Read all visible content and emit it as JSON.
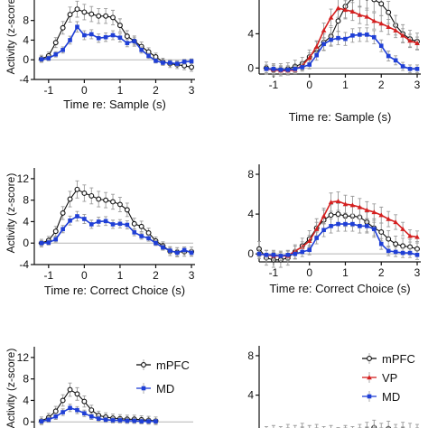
{
  "colors": {
    "mpfc": "#111111",
    "md": "#1f3fd6",
    "vp": "#d42020",
    "err": "#9a9a9a",
    "zero": "#b5b5b5"
  },
  "chart_data": [
    {
      "id": "left-top",
      "type": "line",
      "xlabel": "Time re: Sample (s)",
      "ylabel": "Activity (z-score)",
      "xlim": [
        -1.4,
        3.1
      ],
      "ylim": [
        -4,
        14
      ],
      "xticks": [
        -1,
        0,
        1,
        2,
        3
      ],
      "yticks": [
        -4,
        0,
        4,
        8
      ],
      "x": [
        -1.2,
        -1.0,
        -0.8,
        -0.6,
        -0.4,
        -0.2,
        0.0,
        0.2,
        0.4,
        0.6,
        0.8,
        1.0,
        1.2,
        1.4,
        1.6,
        1.8,
        2.0,
        2.2,
        2.4,
        2.6,
        2.8,
        3.0
      ],
      "series": [
        {
          "name": "mPFC",
          "values": [
            0.2,
            0.8,
            3.5,
            6.5,
            9.2,
            10.3,
            9.7,
            9.3,
            8.9,
            8.9,
            8.6,
            7.0,
            4.8,
            3.8,
            2.7,
            1.6,
            0.6,
            -0.4,
            -0.8,
            -1.0,
            -1.2,
            -1.5
          ]
        },
        {
          "name": "MD",
          "values": [
            0.1,
            0.3,
            1.1,
            2.0,
            4.0,
            6.7,
            5.0,
            5.2,
            4.4,
            4.6,
            5.0,
            4.5,
            3.4,
            3.8,
            2.0,
            0.8,
            -0.2,
            -0.6,
            -0.6,
            -0.8,
            -0.4,
            -0.3
          ]
        }
      ]
    },
    {
      "id": "right-top",
      "type": "line",
      "xlabel": "Time re: Sample (s)",
      "xlim": [
        -1.4,
        3.1
      ],
      "ylim": [
        -0.7,
        9
      ],
      "xticks": [
        -1,
        0,
        1,
        2,
        3
      ],
      "yticks": [
        0,
        4
      ],
      "x": [
        -1.2,
        -1.0,
        -0.8,
        -0.6,
        -0.4,
        -0.2,
        0.0,
        0.2,
        0.4,
        0.6,
        0.8,
        1.0,
        1.2,
        1.4,
        1.6,
        1.8,
        2.0,
        2.2,
        2.4,
        2.6,
        2.8,
        3.0
      ],
      "series": [
        {
          "name": "mPFC",
          "values": [
            0.0,
            -0.2,
            -0.2,
            -0.1,
            0.2,
            0.5,
            1.3,
            2.2,
            3.0,
            3.7,
            5.5,
            7.2,
            8.2,
            8.6,
            8.2,
            8.0,
            7.5,
            6.5,
            5.0,
            4.0,
            3.4,
            3.1
          ]
        },
        {
          "name": "VP",
          "values": [
            -0.1,
            -0.2,
            -0.3,
            -0.3,
            -0.2,
            0.3,
            1.2,
            2.5,
            4.4,
            5.9,
            7.0,
            6.8,
            6.6,
            6.2,
            6.0,
            5.5,
            5.2,
            4.8,
            4.4,
            3.8,
            3.2,
            2.9
          ]
        },
        {
          "name": "MD",
          "values": [
            -0.1,
            -0.1,
            -0.2,
            -0.2,
            -0.1,
            0.1,
            0.4,
            1.5,
            2.8,
            3.3,
            3.5,
            3.4,
            3.8,
            3.9,
            3.9,
            3.6,
            2.6,
            1.4,
            0.9,
            0.2,
            -0.1,
            -0.1
          ]
        }
      ]
    },
    {
      "id": "left-mid",
      "type": "line",
      "xlabel": "Time re: Correct Choice (s)",
      "ylabel": "Activity (z-score)",
      "xlim": [
        -1.4,
        3.1
      ],
      "ylim": [
        -4,
        14
      ],
      "xticks": [
        -1,
        0,
        1,
        2,
        3
      ],
      "yticks": [
        -4,
        0,
        4,
        8,
        12
      ],
      "x": [
        -1.2,
        -1.0,
        -0.8,
        -0.6,
        -0.4,
        -0.2,
        0.0,
        0.2,
        0.4,
        0.6,
        0.8,
        1.0,
        1.2,
        1.4,
        1.6,
        1.8,
        2.0,
        2.2,
        2.4,
        2.6,
        2.8,
        3.0
      ],
      "series": [
        {
          "name": "mPFC",
          "values": [
            0.0,
            0.5,
            2.2,
            5.6,
            8.2,
            10.0,
            9.3,
            8.8,
            8.2,
            8.0,
            7.7,
            7.2,
            6.2,
            3.6,
            3.1,
            1.9,
            0.4,
            -0.5,
            -1.5,
            -1.7,
            -1.6,
            -1.6
          ]
        },
        {
          "name": "MD",
          "values": [
            0.0,
            0.1,
            0.7,
            2.6,
            4.2,
            5.0,
            4.5,
            3.5,
            4.0,
            4.1,
            3.5,
            3.6,
            3.4,
            2.0,
            1.3,
            0.9,
            0.0,
            -0.8,
            -1.4,
            -1.8,
            -1.3,
            -1.8
          ]
        }
      ]
    },
    {
      "id": "right-mid",
      "type": "line",
      "xlabel": "Time re: Correct Choice (s)",
      "xlim": [
        -1.4,
        3.1
      ],
      "ylim": [
        -0.8,
        9
      ],
      "xticks": [
        -1,
        0,
        1,
        2,
        3
      ],
      "yticks": [
        0,
        4,
        8
      ],
      "x": [
        -1.4,
        -1.2,
        -1.0,
        -0.8,
        -0.6,
        -0.4,
        -0.2,
        0.0,
        0.2,
        0.4,
        0.6,
        0.8,
        1.0,
        1.2,
        1.4,
        1.6,
        1.8,
        2.0,
        2.2,
        2.4,
        2.6,
        2.8,
        3.0
      ],
      "series": [
        {
          "name": "mPFC",
          "values": [
            0.5,
            -0.4,
            -0.6,
            -0.6,
            -0.4,
            0.2,
            0.8,
            1.5,
            2.6,
            3.4,
            3.9,
            4.0,
            3.8,
            3.8,
            3.7,
            3.2,
            2.6,
            2.2,
            1.5,
            1.0,
            0.8,
            0.7,
            0.5
          ]
        },
        {
          "name": "VP",
          "values": [
            0.0,
            -0.1,
            -0.2,
            -0.2,
            -0.2,
            0.3,
            0.7,
            1.3,
            2.5,
            3.8,
            5.2,
            5.3,
            5.0,
            4.9,
            4.7,
            4.4,
            4.2,
            3.9,
            3.5,
            3.2,
            2.5,
            1.8,
            1.7
          ]
        },
        {
          "name": "MD",
          "values": [
            0.0,
            -0.1,
            -0.1,
            -0.2,
            -0.1,
            0.0,
            0.2,
            0.4,
            1.6,
            2.4,
            2.8,
            3.0,
            3.0,
            3.0,
            2.8,
            2.8,
            2.5,
            1.0,
            0.3,
            0.2,
            0.1,
            0.1,
            -0.1
          ]
        }
      ]
    },
    {
      "id": "left-bottom",
      "type": "line",
      "ylabel": "Activity (z-score)",
      "xlim": [
        -1.4,
        3.1
      ],
      "ylim": [
        -4,
        14
      ],
      "xticks": [],
      "yticks": [
        0,
        4,
        8,
        12
      ],
      "x": [
        -1.2,
        -1.0,
        -0.8,
        -0.6,
        -0.4,
        -0.2,
        0.0,
        0.2,
        0.4,
        0.6,
        0.8,
        1.0,
        1.2,
        1.4,
        1.6,
        1.8,
        2.0
      ],
      "series": [
        {
          "name": "mPFC",
          "values": [
            0.2,
            0.8,
            2.0,
            4.0,
            6.0,
            5.2,
            3.8,
            2.2,
            1.2,
            0.9,
            0.7,
            0.6,
            0.5,
            0.5,
            0.4,
            0.3,
            0.2
          ]
        },
        {
          "name": "MD",
          "values": [
            0.1,
            0.4,
            1.0,
            1.8,
            2.6,
            2.2,
            1.6,
            1.0,
            0.6,
            0.4,
            0.3,
            0.3,
            0.2,
            0.2,
            0.1,
            0.1,
            0.1
          ]
        }
      ],
      "legend": {
        "placement": "top-right",
        "entries": [
          "mPFC",
          "MD"
        ]
      }
    },
    {
      "id": "right-bottom",
      "type": "line",
      "xlim": [
        -1.4,
        3.1
      ],
      "ylim": [
        -0.8,
        9
      ],
      "xticks": [],
      "yticks": [
        4,
        8
      ],
      "x": [
        -1.2,
        -1.0,
        -0.8,
        -0.6,
        -0.4,
        -0.2,
        0.0,
        0.2,
        0.4,
        0.6,
        0.8,
        1.0,
        1.2,
        1.4,
        1.6,
        1.8,
        2.0,
        2.2,
        2.4,
        2.6,
        2.8,
        3.0
      ],
      "series": [
        {
          "name": "mPFC",
          "values": [
            0.1,
            0.2,
            0.1,
            0.3,
            0.2,
            0.4,
            0.2,
            0.3,
            0.1,
            0.2,
            0.0,
            0.2,
            0.1,
            0.3,
            0.5,
            0.7,
            0.4,
            0.6,
            0.3,
            0.5,
            0.4,
            0.3
          ]
        },
        {
          "name": "VP",
          "values": [
            0.0,
            0.1,
            0.0,
            0.2,
            0.1,
            0.3,
            0.1,
            0.2,
            0.0,
            0.1,
            0.1,
            0.2,
            0.0,
            0.2,
            0.3,
            0.4,
            0.2,
            0.3,
            0.2,
            0.3,
            0.1,
            0.2
          ]
        },
        {
          "name": "MD",
          "values": [
            0.0,
            0.0,
            0.1,
            0.1,
            0.0,
            0.2,
            0.0,
            0.1,
            0.0,
            0.1,
            0.0,
            0.1,
            0.0,
            0.1,
            0.2,
            0.2,
            0.1,
            0.2,
            0.1,
            0.2,
            0.0,
            0.1
          ]
        }
      ],
      "legend": {
        "placement": "top-right",
        "entries": [
          "mPFC",
          "VP",
          "MD"
        ]
      }
    }
  ]
}
